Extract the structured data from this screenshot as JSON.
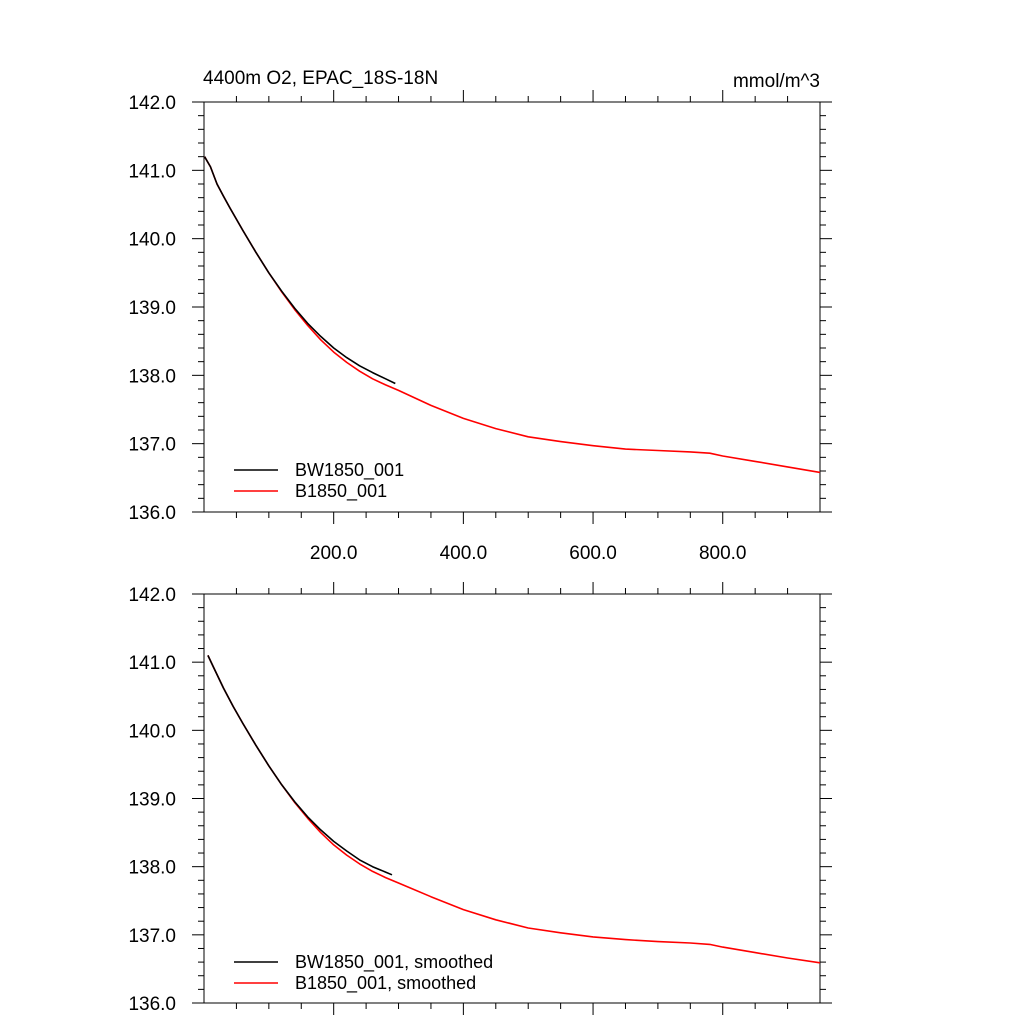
{
  "figure": {
    "left_title": "4400m O2, EPAC_18S-18N",
    "right_title": "mmol/m^3"
  },
  "colors": {
    "black": "#000000",
    "red": "#ff0000"
  },
  "chart_data": [
    {
      "type": "line",
      "title": "4400m O2, EPAC_18S-18N",
      "units": "mmol/m^3",
      "xlim": [
        0,
        950
      ],
      "ylim": [
        136.0,
        142.0
      ],
      "x_ticks": [
        200,
        400,
        600,
        800
      ],
      "x_tick_labels": [
        "200.0",
        "400.0",
        "600.0",
        "800.0"
      ],
      "y_ticks": [
        136,
        137,
        138,
        139,
        140,
        141,
        142
      ],
      "y_tick_labels": [
        "136.0",
        "137.0",
        "138.0",
        "139.0",
        "140.0",
        "141.0",
        "142.0"
      ],
      "legend_position": "bottom-left",
      "series": [
        {
          "name": "BW1850_001",
          "color": "#000000",
          "x": [
            1,
            10,
            20,
            30,
            40,
            60,
            80,
            100,
            120,
            140,
            160,
            180,
            200,
            220,
            240,
            260,
            280,
            295
          ],
          "y": [
            141.2,
            141.05,
            140.8,
            140.62,
            140.45,
            140.12,
            139.8,
            139.5,
            139.23,
            138.98,
            138.76,
            138.57,
            138.4,
            138.26,
            138.14,
            138.04,
            137.95,
            137.88
          ]
        },
        {
          "name": "B1850_001",
          "color": "#ff0000",
          "x": [
            1,
            10,
            20,
            30,
            40,
            60,
            80,
            100,
            120,
            140,
            160,
            180,
            200,
            220,
            240,
            260,
            280,
            300,
            350,
            400,
            450,
            500,
            550,
            600,
            650,
            700,
            750,
            780,
            800,
            850,
            900,
            950
          ],
          "y": [
            141.2,
            141.05,
            140.8,
            140.62,
            140.45,
            140.12,
            139.8,
            139.5,
            139.22,
            138.96,
            138.73,
            138.52,
            138.34,
            138.19,
            138.06,
            137.95,
            137.86,
            137.78,
            137.56,
            137.37,
            137.22,
            137.1,
            137.03,
            136.97,
            136.92,
            136.9,
            136.88,
            136.86,
            136.82,
            136.74,
            136.66,
            136.58
          ]
        }
      ]
    },
    {
      "type": "line",
      "xlim": [
        0,
        950
      ],
      "ylim": [
        136.0,
        142.0
      ],
      "x_ticks": [
        200,
        400,
        600,
        800
      ],
      "y_ticks": [
        136,
        137,
        138,
        139,
        140,
        141,
        142
      ],
      "y_tick_labels": [
        "136.0",
        "137.0",
        "138.0",
        "139.0",
        "140.0",
        "141.0",
        "142.0"
      ],
      "legend_position": "bottom-left",
      "series": [
        {
          "name": "BW1850_001, smoothed",
          "color": "#000000",
          "x": [
            6,
            15,
            30,
            45,
            60,
            80,
            100,
            120,
            140,
            160,
            180,
            200,
            220,
            240,
            260,
            280,
            290
          ],
          "y": [
            141.1,
            140.92,
            140.62,
            140.35,
            140.1,
            139.78,
            139.48,
            139.2,
            138.95,
            138.73,
            138.54,
            138.37,
            138.23,
            138.1,
            138.0,
            137.92,
            137.88
          ]
        },
        {
          "name": "B1850_001, smoothed",
          "color": "#ff0000",
          "x": [
            6,
            15,
            30,
            45,
            60,
            80,
            100,
            120,
            140,
            160,
            180,
            200,
            220,
            240,
            260,
            280,
            300,
            350,
            400,
            450,
            500,
            550,
            600,
            650,
            700,
            750,
            780,
            800,
            850,
            900,
            950
          ],
          "y": [
            141.1,
            140.92,
            140.62,
            140.35,
            140.1,
            139.78,
            139.48,
            139.2,
            138.94,
            138.71,
            138.5,
            138.32,
            138.17,
            138.04,
            137.93,
            137.84,
            137.76,
            137.56,
            137.37,
            137.22,
            137.1,
            137.03,
            136.97,
            136.93,
            136.9,
            136.88,
            136.86,
            136.82,
            136.74,
            136.66,
            136.59
          ]
        }
      ]
    }
  ]
}
